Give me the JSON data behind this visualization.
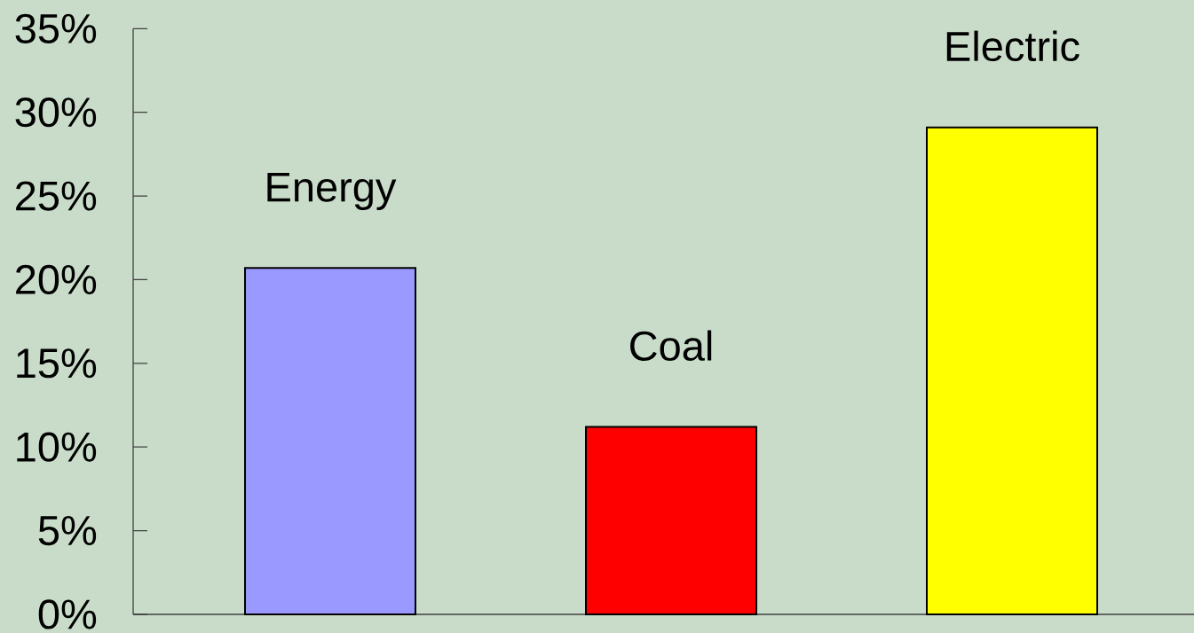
{
  "chart_data": {
    "type": "bar",
    "categories": [
      "Energy",
      "Coal",
      "Electric"
    ],
    "values": [
      20.7,
      11.2,
      29.1
    ],
    "colors": [
      "#9999ff",
      "#ff0000",
      "#ffff00"
    ],
    "ylim": [
      0,
      35
    ],
    "yticks": [
      {
        "value": 0,
        "label": "0%"
      },
      {
        "value": 5,
        "label": "5%"
      },
      {
        "value": 10,
        "label": "10%"
      },
      {
        "value": 15,
        "label": "15%"
      },
      {
        "value": 20,
        "label": "20%"
      },
      {
        "value": 25,
        "label": "25%"
      },
      {
        "value": 30,
        "label": "30%"
      },
      {
        "value": 35,
        "label": "35%"
      }
    ]
  }
}
